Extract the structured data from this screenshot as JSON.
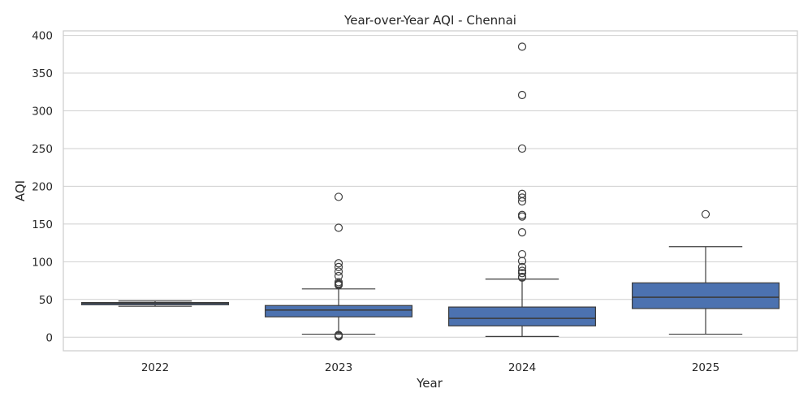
{
  "chart_data": {
    "type": "box",
    "title": "Year-over-Year AQI - Chennai",
    "xlabel": "Year",
    "ylabel": "AQI",
    "ylim": [
      -18,
      406
    ],
    "yticks": [
      0,
      50,
      100,
      150,
      200,
      250,
      300,
      350,
      400
    ],
    "grid": "horizontal",
    "box_color": "#4c72b0",
    "categories": [
      "2022",
      "2023",
      "2024",
      "2025"
    ],
    "boxes": [
      {
        "category": "2022",
        "whisker_low": 41,
        "q1": 43,
        "median": 45,
        "q3": 46,
        "whisker_high": 48,
        "outliers": []
      },
      {
        "category": "2023",
        "whisker_low": 4,
        "q1": 27,
        "median": 36,
        "q3": 42,
        "whisker_high": 64,
        "outliers": [
          186,
          145,
          98,
          93,
          87,
          81,
          73,
          71,
          70,
          69,
          3,
          2,
          1
        ]
      },
      {
        "category": "2024",
        "whisker_low": 1,
        "q1": 15,
        "median": 25,
        "q3": 40,
        "whisker_high": 77,
        "outliers": [
          385,
          321,
          250,
          190,
          185,
          180,
          162,
          160,
          139,
          110,
          101,
          93,
          88,
          85,
          80,
          79
        ]
      },
      {
        "category": "2025",
        "whisker_low": 4,
        "q1": 38,
        "median": 53,
        "q3": 72,
        "whisker_high": 120,
        "outliers": [
          163
        ]
      }
    ]
  }
}
